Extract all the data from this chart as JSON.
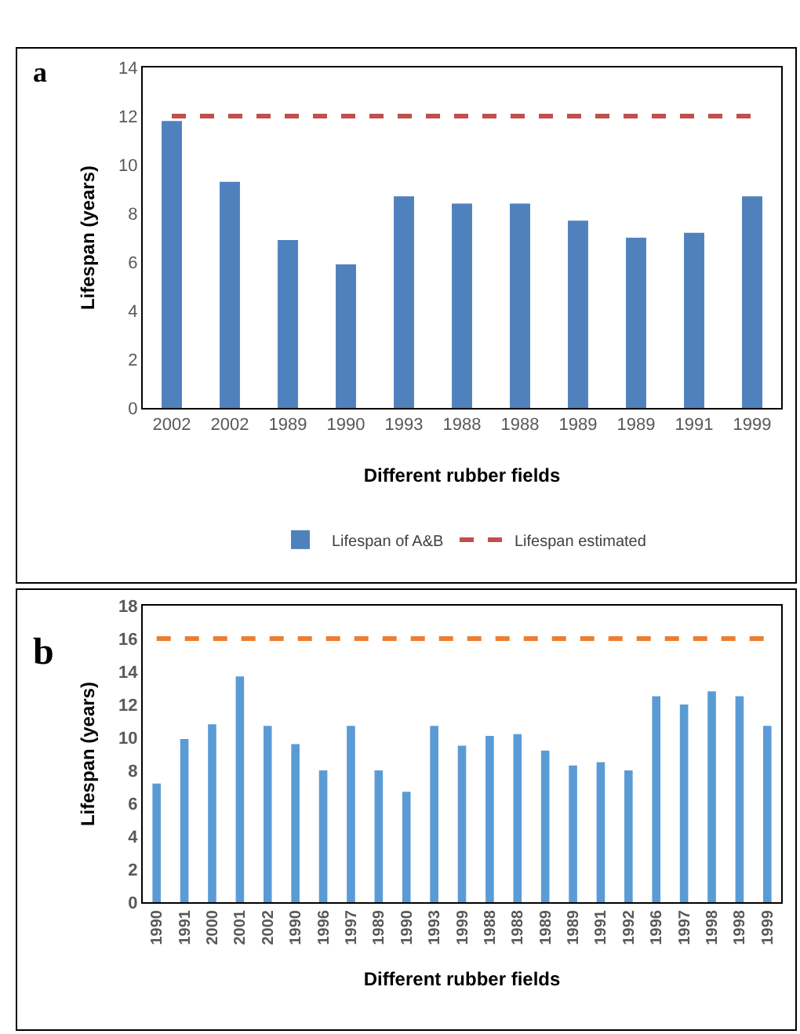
{
  "chart_data": [
    {
      "type": "bar",
      "xlabel": "Different rubber fields",
      "ylabel": "Lifespan (years)",
      "annotations": [
        "a"
      ],
      "categories": [
        "2002",
        "2002",
        "1989",
        "1990",
        "1993",
        "1988",
        "1988",
        "1989",
        "1989",
        "1991",
        "1999"
      ],
      "series": [
        {
          "name": "Lifespan of A&B",
          "color": "#4f81bd",
          "values": [
            11.8,
            9.3,
            6.9,
            5.9,
            8.7,
            8.4,
            8.4,
            7.7,
            7.0,
            7.2,
            8.7
          ]
        },
        {
          "type": "line",
          "name": "Lifespan estimated",
          "color": "#c0504d",
          "line_style": "dashed",
          "values": [
            12,
            12,
            12,
            12,
            12,
            12,
            12,
            12,
            12,
            12,
            12
          ]
        }
      ],
      "ylim": [
        0,
        14
      ],
      "yticks": [
        0,
        2,
        4,
        6,
        8,
        10,
        12,
        14
      ],
      "grid": false,
      "legend": "bottom"
    },
    {
      "type": "bar",
      "xlabel": "Different rubber fields",
      "ylabel": "Lifespan (years)",
      "annotations": [
        "b"
      ],
      "categories": [
        "1990",
        "1991",
        "2000",
        "2001",
        "2002",
        "1990",
        "1996",
        "1997",
        "1989",
        "1990",
        "1993",
        "1999",
        "1988",
        "1988",
        "1989",
        "1989",
        "1991",
        "1992",
        "1996",
        "1997",
        "1998",
        "1998",
        "1999"
      ],
      "series": [
        {
          "color": "#5b9bd5",
          "values": [
            7.2,
            9.9,
            10.8,
            13.7,
            10.7,
            9.6,
            8.0,
            10.7,
            8.0,
            6.7,
            10.7,
            9.5,
            10.1,
            10.2,
            9.2,
            8.3,
            8.5,
            8.0,
            12.5,
            12.0,
            12.8,
            12.5,
            10.7
          ]
        },
        {
          "type": "line",
          "color": "#ed7d31",
          "line_style": "dashed",
          "values": [
            16,
            16,
            16,
            16,
            16,
            16,
            16,
            16,
            16,
            16,
            16,
            16,
            16,
            16,
            16,
            16,
            16,
            16,
            16,
            16,
            16,
            16,
            16
          ]
        }
      ],
      "ylim": [
        0,
        18
      ],
      "yticks": [
        0,
        2,
        4,
        6,
        8,
        10,
        12,
        14,
        16,
        18
      ],
      "grid": false,
      "legend": false
    }
  ]
}
